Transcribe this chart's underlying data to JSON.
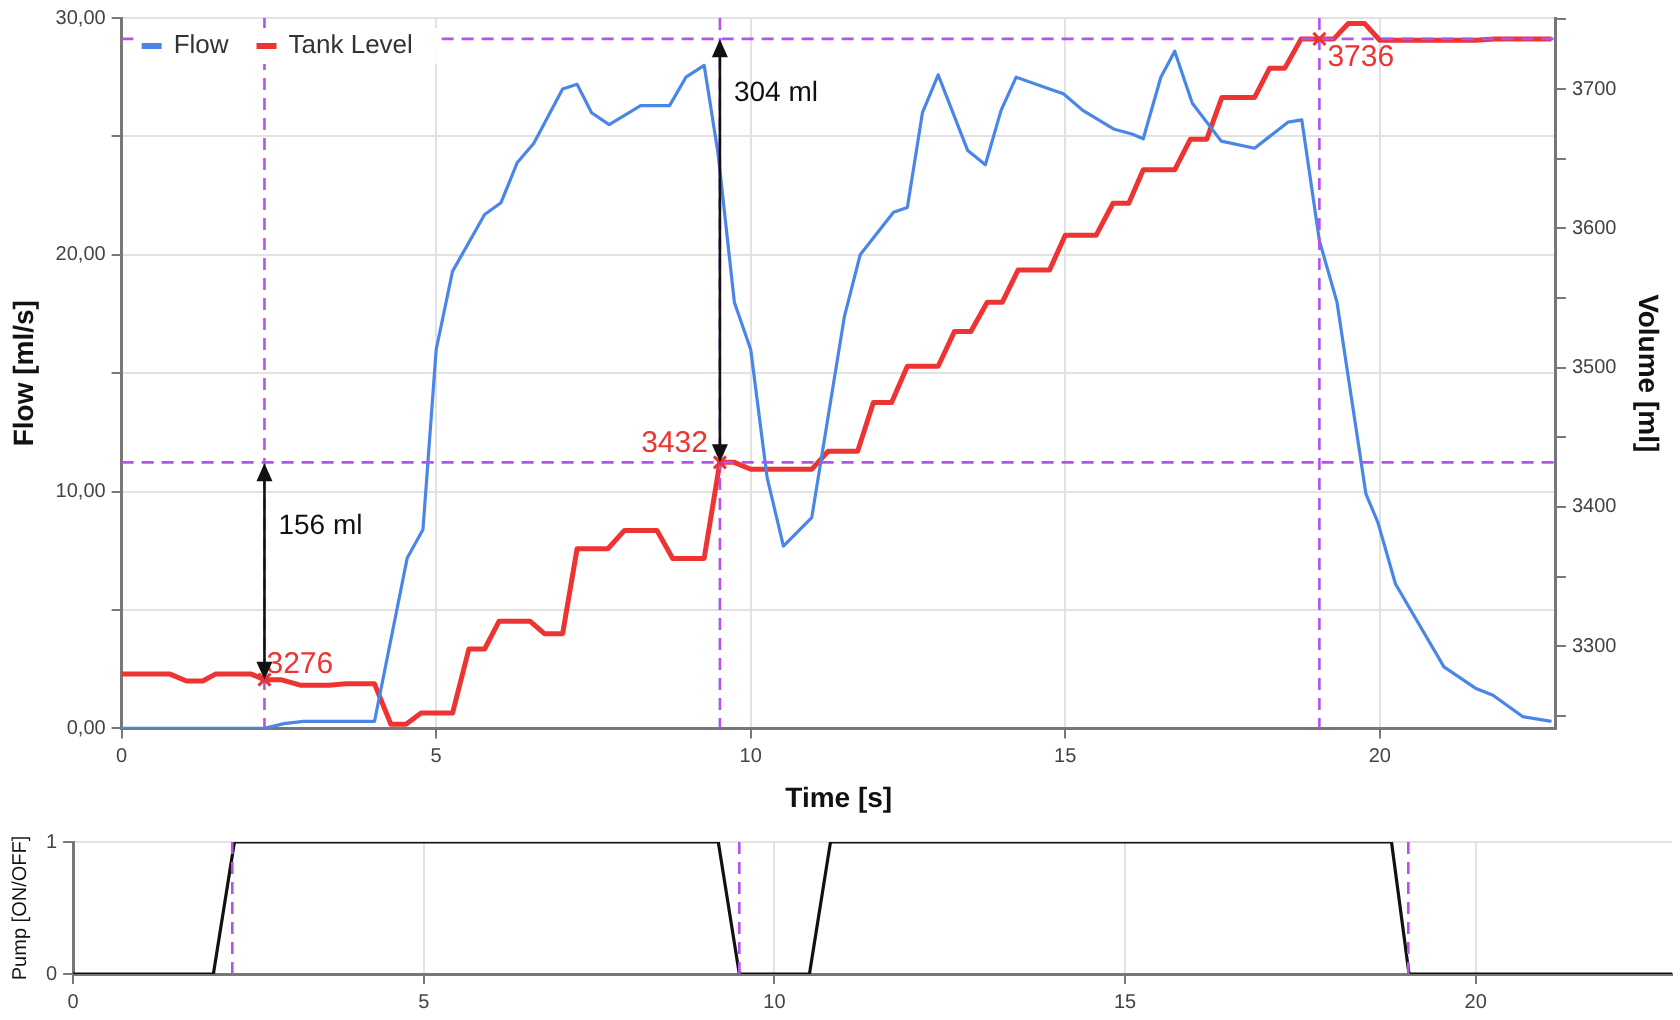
{
  "chart_data": [
    {
      "type": "line",
      "xlabel": "Time [s]",
      "ylabel": "Flow [ml/s]",
      "y2label": "Volume [ml]",
      "xlim": [
        0,
        22.8
      ],
      "xticks": [
        0,
        5,
        10,
        15,
        20
      ],
      "ylim": [
        0,
        30
      ],
      "yticks": [
        {
          "value": 0,
          "label": "0,00"
        },
        {
          "value": 5,
          "label": null
        },
        {
          "value": 10,
          "label": "10,00"
        },
        {
          "value": 15,
          "label": null
        },
        {
          "value": 20,
          "label": "20,00"
        },
        {
          "value": 25,
          "label": null
        },
        {
          "value": 30,
          "label": "30,00"
        }
      ],
      "y2lim": [
        3241,
        3751
      ],
      "y2ticks": [
        {
          "value": 3250,
          "label": null
        },
        3300,
        {
          "value": 3350,
          "label": null
        },
        3400,
        {
          "value": 3450,
          "label": null
        },
        3500,
        {
          "value": 3550,
          "label": null
        },
        3600,
        {
          "value": 3650,
          "label": null
        },
        3700,
        {
          "value": 3750,
          "label": null
        }
      ],
      "grid": true,
      "legend": "top left",
      "marker": "none",
      "line_style": "solid",
      "series": [
        {
          "name": "Flow",
          "color": "#4a86e8",
          "x": [
            0,
            2.27,
            2.58,
            2.89,
            4.02,
            4.54,
            4.79,
            5.0,
            5.26,
            5.77,
            6.03,
            6.29,
            6.55,
            7.01,
            7.24,
            7.47,
            7.75,
            8.25,
            8.71,
            8.97,
            9.26,
            9.48,
            9.74,
            10.0,
            10.26,
            10.52,
            10.97,
            11.49,
            11.74,
            12.27,
            12.49,
            12.73,
            12.98,
            13.45,
            13.73,
            13.98,
            14.22,
            14.75,
            14.97,
            15.28,
            15.78,
            16.06,
            16.24,
            16.52,
            16.74,
            17.02,
            17.48,
            18.01,
            18.54,
            18.76,
            19.04,
            19.32,
            19.78,
            19.97,
            20.25,
            21.02,
            21.52,
            21.8,
            22.27,
            22.73
          ],
          "values": [
            0,
            0,
            0.2,
            0.3,
            0.3,
            7.2,
            8.4,
            16,
            19.3,
            21.7,
            22.2,
            23.9,
            24.7,
            27,
            27.2,
            26.0,
            25.5,
            26.3,
            26.3,
            27.5,
            28.0,
            24.3,
            18.0,
            16.0,
            10.6,
            7.7,
            8.9,
            17.4,
            20.0,
            21.8,
            22.0,
            26.0,
            27.6,
            24.4,
            23.8,
            26.1,
            27.5,
            27.0,
            26.8,
            26.1,
            25.3,
            25.1,
            24.9,
            27.5,
            28.6,
            26.4,
            24.8,
            24.5,
            25.6,
            25.7,
            20.6,
            18.0,
            9.9,
            8.7,
            6.1,
            2.6,
            1.7,
            1.4,
            0.5,
            0.3
          ]
        },
        {
          "name": "Tank Level",
          "color": "#ee3333",
          "axis": "y2",
          "x": [
            0,
            0.77,
            1.03,
            1.29,
            1.49,
            2.06,
            2.27,
            2.53,
            2.84,
            3.3,
            3.56,
            4.02,
            4.28,
            4.52,
            4.76,
            5.26,
            5.52,
            5.77,
            6.0,
            6.49,
            6.72,
            7.01,
            7.24,
            7.73,
            7.99,
            8.51,
            8.76,
            9.26,
            9.51,
            9.74,
            10.0,
            10.97,
            11.23,
            11.7,
            11.95,
            12.24,
            12.49,
            12.98,
            13.24,
            13.5,
            13.76,
            14.0,
            14.25,
            14.75,
            15.0,
            15.49,
            15.76,
            16.01,
            16.24,
            16.74,
            16.99,
            17.25,
            17.49,
            18.01,
            18.25,
            18.49,
            18.75,
            19.04,
            19.27,
            19.5,
            19.76,
            20.0,
            21.52,
            21.83,
            22.73
          ],
          "values": [
            3280,
            3280,
            3275,
            3275,
            3280,
            3280,
            3276,
            3276,
            3272,
            3272,
            3273,
            3273,
            3244,
            3244,
            3252,
            3252,
            3298,
            3298,
            3318,
            3318,
            3309,
            3309,
            3370,
            3370,
            3383,
            3383,
            3363,
            3363,
            3432,
            3432,
            3427,
            3427,
            3440,
            3440,
            3475,
            3475,
            3501,
            3501,
            3526,
            3526,
            3547,
            3547,
            3570,
            3570,
            3595,
            3595,
            3618,
            3618,
            3642,
            3642,
            3664,
            3664,
            3694,
            3694,
            3715,
            3715,
            3736,
            3736,
            3736,
            3747,
            3747,
            3735,
            3735,
            3736,
            3736
          ]
        }
      ],
      "ref_lines": [
        {
          "axis": "x",
          "value": 2.27,
          "color": "#b452f0",
          "line_style": "dashed"
        },
        {
          "axis": "x",
          "value": 9.51,
          "color": "#b452f0",
          "line_style": "dashed"
        },
        {
          "axis": "x",
          "value": 19.04,
          "color": "#b452f0",
          "line_style": "dashed"
        },
        {
          "axis": "y2",
          "value": 3432,
          "color": "#b452f0",
          "line_style": "dashed"
        },
        {
          "axis": "y2",
          "value": 3736,
          "color": "#b452f0",
          "line_style": "dashed"
        }
      ],
      "annotations": [
        "3276",
        {
          "text": "156 ml",
          "x": 2.27,
          "y": 11.2
        },
        "3432",
        {
          "text": "304 ml",
          "x": 9.51,
          "y": 29.1
        },
        "3736"
      ]
    },
    {
      "type": "line",
      "ylabel": "Pump [ON/OFF]",
      "xlim": [
        0,
        22.8
      ],
      "xticks": [
        0,
        5,
        10,
        15,
        20
      ],
      "ylim": [
        0,
        1
      ],
      "yticks": [
        0,
        1
      ],
      "grid": true,
      "marker": "none",
      "line_style": "solid",
      "series": [
        {
          "color": "#111111",
          "x": [
            0,
            2.0,
            2.3,
            9.2,
            9.5,
            10.5,
            10.8,
            18.8,
            19.05,
            22.8
          ],
          "values": [
            0,
            0,
            1,
            1,
            0,
            0,
            1,
            1,
            0,
            0
          ]
        }
      ],
      "ref_lines": [
        {
          "axis": "x",
          "value": 2.27,
          "color": "#b452f0",
          "line_style": "dashed"
        },
        {
          "axis": "x",
          "value": 9.5,
          "color": "#b452f0",
          "line_style": "dashed"
        },
        {
          "axis": "x",
          "value": 19.04,
          "color": "#b452f0",
          "line_style": "dashed"
        }
      ]
    }
  ]
}
